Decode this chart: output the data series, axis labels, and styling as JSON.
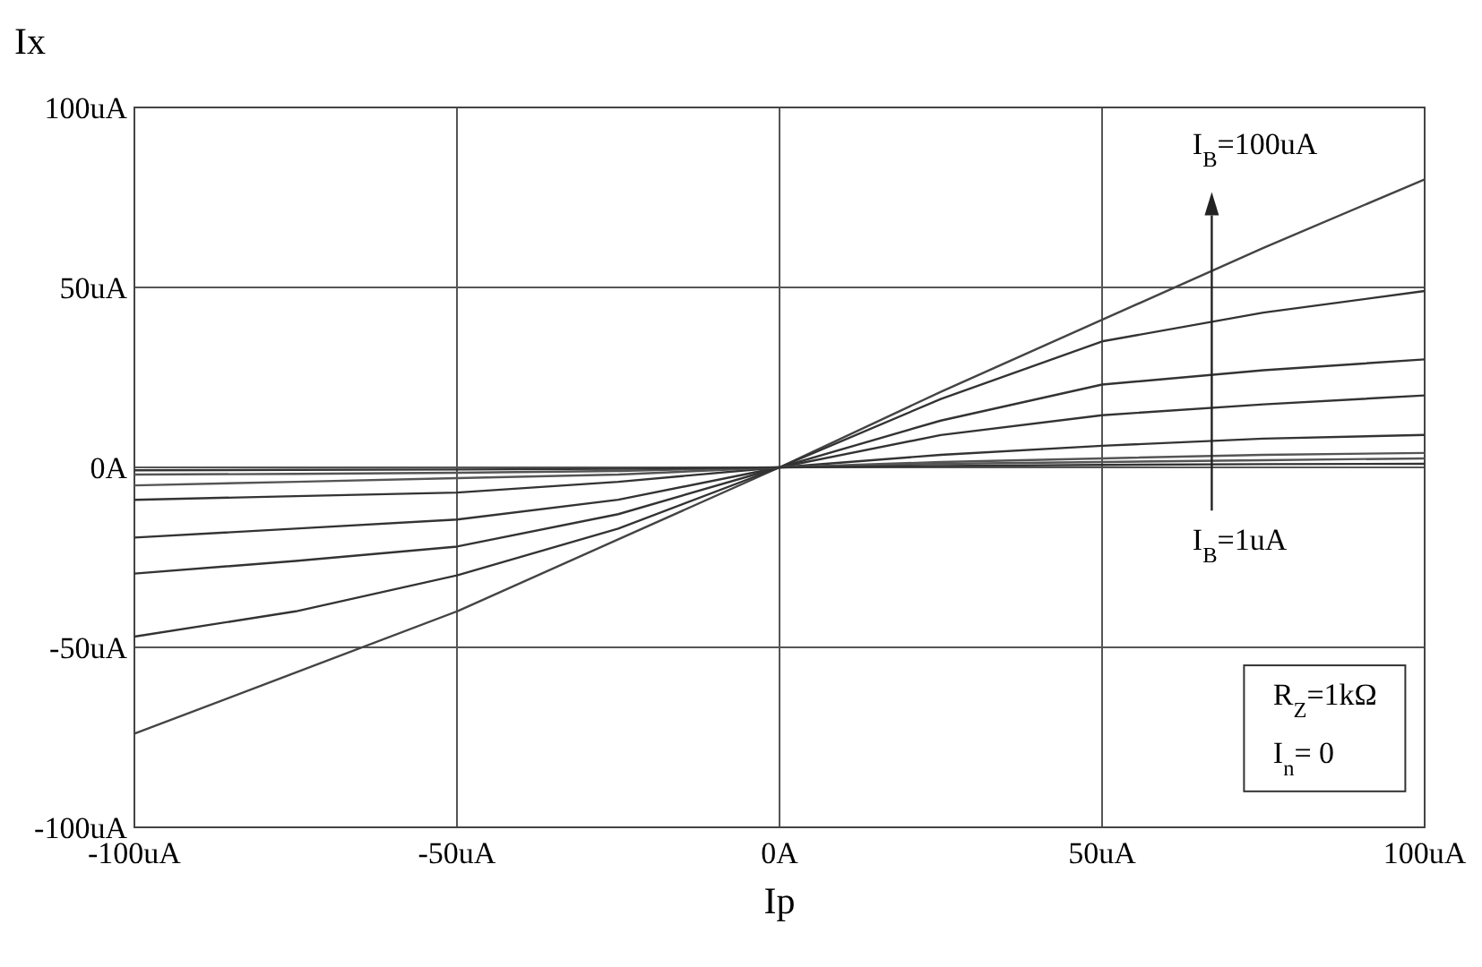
{
  "chart_data": {
    "type": "line",
    "xlabel": "Ip",
    "ylabel": "Ix",
    "x": [
      -100,
      -75,
      -50,
      -25,
      0,
      25,
      50,
      75,
      100
    ],
    "series": [
      {
        "color": "#444444",
        "values": [
          -74,
          -57,
          -40,
          -20,
          0,
          21,
          41,
          61,
          80
        ]
      },
      {
        "color": "#333333",
        "values": [
          -47,
          -40,
          -30,
          -17,
          0,
          19,
          35,
          43,
          49
        ]
      },
      {
        "color": "#333333",
        "values": [
          -29.5,
          -26,
          -22,
          -13,
          0,
          13,
          23,
          27,
          30
        ]
      },
      {
        "color": "#333333",
        "values": [
          -19.5,
          -17,
          -14.5,
          -9,
          0,
          9,
          14.5,
          17.5,
          20
        ]
      },
      {
        "color": "#333333",
        "values": [
          -9,
          -8,
          -7,
          -4,
          0,
          3.5,
          6,
          8,
          9
        ]
      },
      {
        "color": "#555555",
        "values": [
          -5,
          -4,
          -3,
          -2,
          0,
          1.5,
          2.5,
          3.5,
          4
        ]
      },
      {
        "color": "#555555",
        "values": [
          -2,
          -1.8,
          -1.5,
          -1,
          0,
          1,
          1.5,
          2,
          2.5
        ]
      },
      {
        "color": "#333333",
        "values": [
          -0.8,
          -0.7,
          -0.6,
          -0.4,
          0,
          0.4,
          0.7,
          0.9,
          1
        ]
      }
    ],
    "xlim": [
      -100,
      100
    ],
    "ylim": [
      -100,
      100
    ],
    "xticks": [
      {
        "value": -100,
        "label": "-100uA"
      },
      {
        "value": -50,
        "label": "-50uA"
      },
      {
        "value": 0,
        "label": "0A"
      },
      {
        "value": 50,
        "label": "50uA"
      },
      {
        "value": 100,
        "label": "100uA"
      }
    ],
    "yticks": [
      {
        "value": -100,
        "label": "-100uA"
      },
      {
        "value": -50,
        "label": "-50uA"
      },
      {
        "value": 0,
        "label": "0A"
      },
      {
        "value": 50,
        "label": "50uA"
      },
      {
        "value": 100,
        "label": "100uA"
      }
    ],
    "grid": true,
    "marker": "none",
    "line_style": "solid",
    "annotations": [
      "I$_{B}$=100uA",
      "I$_{B}$=1uA",
      "R$_{Z}$=1kΩ",
      "I$_{n}$= 0"
    ]
  }
}
